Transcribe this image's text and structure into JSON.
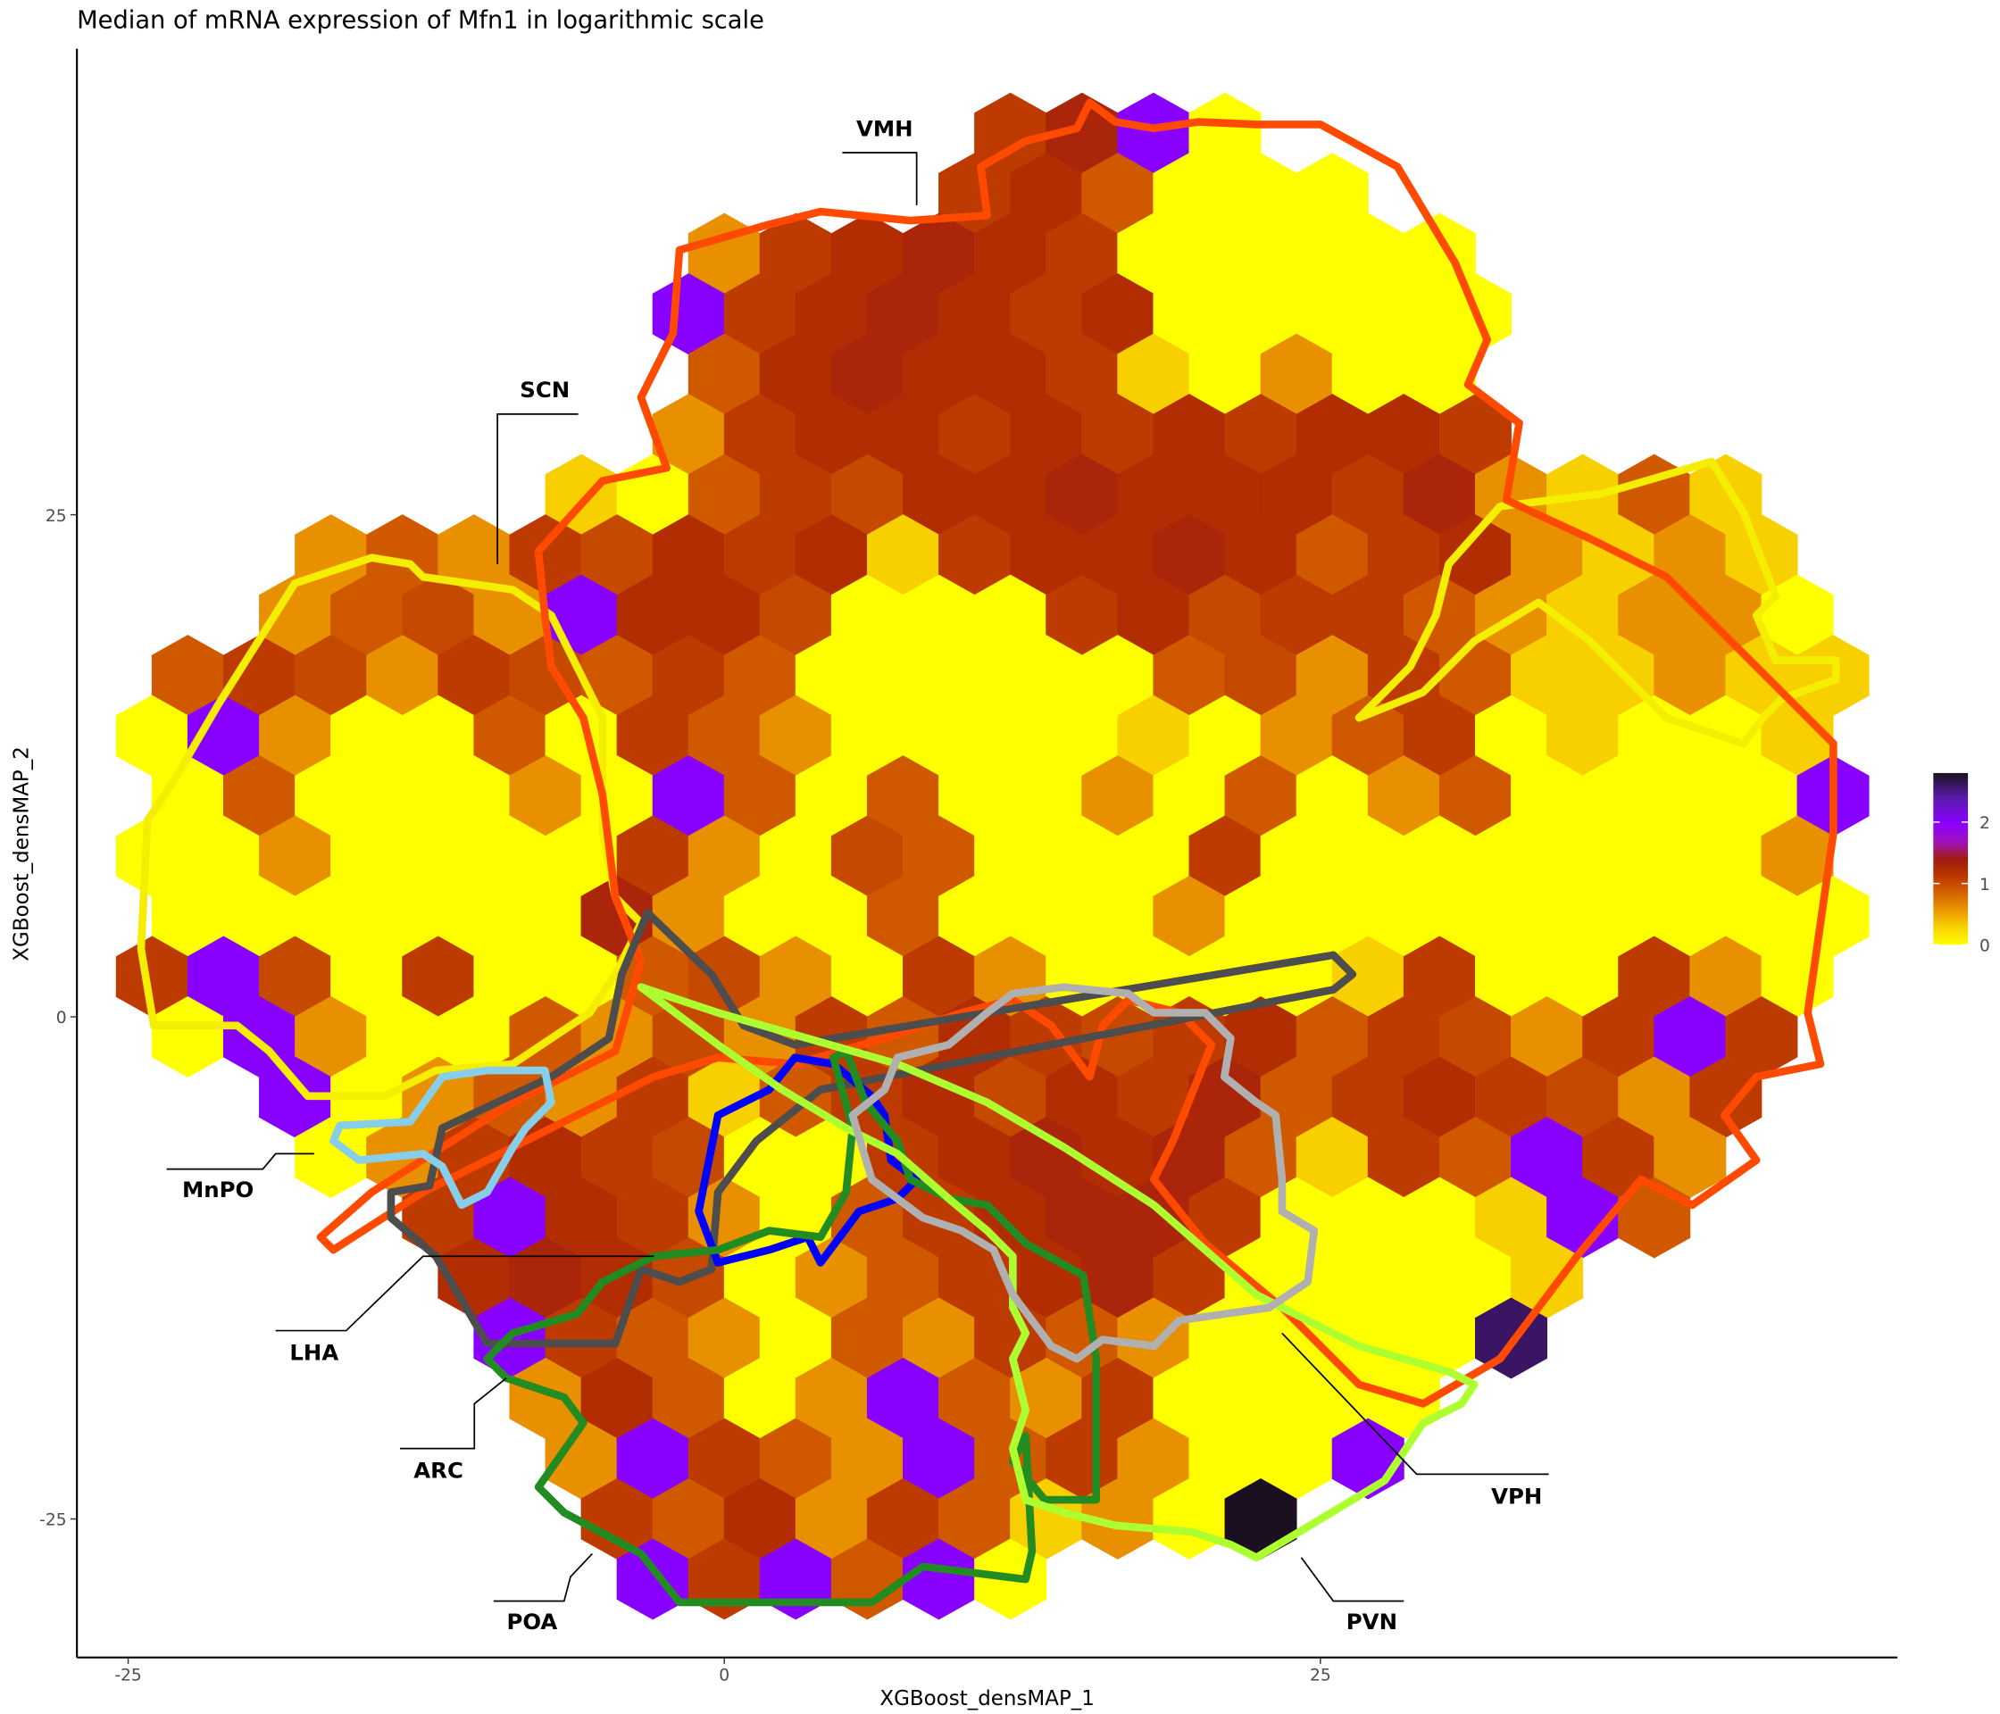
{
  "chart_data": {
    "type": "hexbin",
    "title": "Median of mRNA expression of Mfn1 in logarithmic scale",
    "x_label": "XGBoost_densMAP_1",
    "y_label": "XGBoost_densMAP_2",
    "xlim": [
      -27.15,
      49.2
    ],
    "ylim": [
      -31.9,
      48.2
    ],
    "xticks": [
      -25,
      0,
      25
    ],
    "yticks": [
      -25,
      0,
      25
    ],
    "clim": [
      0,
      2.8
    ],
    "cticks": [
      0,
      1,
      2
    ],
    "regions": [
      "VMH",
      "SCN",
      "MnPO",
      "LHA",
      "ARC",
      "POA",
      "VPH",
      "PVN"
    ],
    "hexes": [
      {
        "y": 44,
        "x": [
          12,
          15,
          18,
          21
        ],
        "values": [
          1.1,
          1.3,
          2,
          0
        ]
      },
      {
        "y": 41,
        "x": [
          10.5,
          13.5,
          16.5,
          19.5,
          22.5,
          25.5
        ],
        "values": [
          1.1,
          1.2,
          0.9,
          0,
          0,
          0
        ]
      },
      {
        "y": 38,
        "x": [
          0,
          3,
          6,
          9,
          12,
          15,
          18,
          21,
          24,
          27,
          30
        ],
        "values": [
          0.6,
          1.1,
          1.2,
          1.3,
          1.2,
          1.1,
          0,
          0,
          0,
          0,
          0
        ]
      },
      {
        "y": 35,
        "x": [
          -1.5,
          1.5,
          4.5,
          7.5,
          10.5,
          13.5,
          16.5,
          19.5,
          22.5,
          25.5,
          28.5,
          31.5
        ],
        "values": [
          2,
          1.1,
          1.2,
          1.3,
          1.2,
          1.1,
          1.2,
          0,
          0,
          0,
          0,
          0
        ]
      },
      {
        "y": 32,
        "x": [
          0,
          3,
          6,
          9,
          12,
          15,
          18,
          21,
          24,
          27,
          30
        ],
        "values": [
          0.9,
          1.2,
          1.3,
          1.2,
          1.2,
          1.1,
          0.3,
          0,
          0.6,
          0,
          0
        ]
      },
      {
        "y": 29,
        "x": [
          -1.5,
          1.5,
          4.5,
          7.5,
          10.5,
          13.5,
          16.5,
          19.5,
          22.5,
          25.5,
          28.5,
          31.5
        ],
        "values": [
          0.6,
          1.1,
          1.2,
          1.2,
          1.1,
          1.2,
          1.1,
          1.2,
          1.1,
          1.2,
          1.2,
          1.1
        ]
      },
      {
        "y": 26,
        "x": [
          -6,
          -3,
          0,
          3,
          6,
          9,
          12,
          15,
          18,
          21,
          24,
          27,
          30,
          33,
          36,
          39,
          42
        ],
        "values": [
          0.3,
          0,
          0.9,
          1.1,
          1,
          1.2,
          1.2,
          1.3,
          1.2,
          1.2,
          1.2,
          1.1,
          1.3,
          0.6,
          0.3,
          0.9,
          0.3
        ]
      },
      {
        "y": 23,
        "x": [
          -16.5,
          -13.5,
          -10.5,
          -7.5,
          -4.5,
          -1.5,
          1.5,
          4.5,
          7.5,
          10.5,
          13.5,
          16.5,
          19.5,
          22.5,
          25.5,
          28.5,
          31.5,
          34.5,
          37.5,
          40.5,
          43.5
        ],
        "values": [
          0.6,
          0.9,
          0.6,
          1.1,
          1,
          1.2,
          1.1,
          1.2,
          0.3,
          1.1,
          1.2,
          1.2,
          1.3,
          1.2,
          0.9,
          1.1,
          1.2,
          0.6,
          0.3,
          0.6,
          0.3
        ]
      },
      {
        "y": 20,
        "x": [
          -18,
          -15,
          -12,
          -9,
          -6,
          -3,
          0,
          3,
          6,
          9,
          12,
          15,
          18,
          21,
          24,
          27,
          30,
          33,
          36,
          39,
          42,
          45
        ],
        "values": [
          0.6,
          0.9,
          1,
          0.6,
          2,
          1.2,
          1.2,
          1,
          0,
          0,
          0,
          1.1,
          1.2,
          1,
          1.1,
          1.1,
          0.9,
          0.6,
          0.3,
          0.6,
          0.6,
          0
        ]
      },
      {
        "y": 17,
        "x": [
          -22.5,
          -19.5,
          -16.5,
          -13.5,
          -10.5,
          -7.5,
          -4.5,
          -1.5,
          1.5,
          4.5,
          7.5,
          10.5,
          13.5,
          16.5,
          19.5,
          22.5,
          25.5,
          28.5,
          31.5,
          34.5,
          37.5,
          40.5,
          43.5,
          46.5
        ],
        "values": [
          0.9,
          1.1,
          1,
          0.6,
          1.1,
          1,
          0.9,
          1.1,
          0.9,
          0,
          0,
          0,
          0,
          0,
          0.9,
          1,
          0.6,
          1.1,
          0.9,
          0.3,
          0.3,
          0.6,
          0.3,
          0.3
        ]
      },
      {
        "y": 14,
        "x": [
          -24,
          -21,
          -18,
          -15,
          -12,
          -9,
          -6,
          -3,
          0,
          3,
          6,
          9,
          12,
          15,
          18,
          21,
          24,
          27,
          30,
          33,
          36,
          39,
          42,
          45
        ],
        "values": [
          0,
          2,
          0.6,
          0,
          0,
          0.9,
          0,
          1.1,
          0.9,
          0.6,
          0,
          0,
          0,
          0,
          0.3,
          0,
          0.6,
          0.9,
          1.1,
          0,
          0.3,
          0,
          0,
          0.3
        ]
      },
      {
        "y": 11,
        "x": [
          -22.5,
          -19.5,
          -16.5,
          -13.5,
          -10.5,
          -7.5,
          -4.5,
          -1.5,
          1.5,
          4.5,
          7.5,
          10.5,
          13.5,
          16.5,
          19.5,
          22.5,
          25.5,
          28.5,
          31.5,
          34.5,
          37.5,
          40.5,
          43.5,
          46.5
        ],
        "values": [
          0,
          0.9,
          0,
          0,
          0,
          0.6,
          0,
          2,
          0.9,
          0,
          0.9,
          0,
          0,
          0.6,
          0,
          0.9,
          0,
          0.6,
          0.9,
          0,
          0,
          0,
          0,
          2
        ]
      },
      {
        "y": 8,
        "x": [
          -24,
          -21,
          -18,
          -15,
          -12,
          -9,
          -6,
          -3,
          0,
          3,
          6,
          9,
          12,
          15,
          18,
          21,
          24,
          27,
          30,
          33,
          36,
          39,
          42,
          45
        ],
        "values": [
          0,
          0,
          0.6,
          0,
          0,
          0,
          0,
          1.1,
          0.6,
          0,
          1,
          0.9,
          0,
          0,
          0,
          1.1,
          0,
          0,
          0,
          0,
          0,
          0,
          0,
          0.6
        ]
      },
      {
        "y": 5,
        "x": [
          -22.5,
          -19.5,
          -16.5,
          -13.5,
          -10.5,
          -7.5,
          -4.5,
          -1.5,
          1.5,
          4.5,
          7.5,
          10.5,
          13.5,
          16.5,
          19.5,
          22.5,
          25.5,
          28.5,
          31.5,
          34.5,
          37.5,
          40.5,
          43.5,
          46.5
        ],
        "values": [
          0,
          0,
          0,
          0,
          0,
          0,
          1.3,
          0.6,
          0,
          0,
          0.9,
          0,
          0,
          0,
          0.6,
          0,
          0,
          0,
          0,
          0,
          0,
          0,
          0,
          0
        ]
      },
      {
        "y": 2,
        "x": [
          -24,
          -21,
          -18,
          -15,
          -12,
          -9,
          -6,
          -3,
          0,
          3,
          6,
          9,
          12,
          15,
          18,
          21,
          24,
          27,
          30,
          33,
          36,
          39,
          42,
          45
        ],
        "values": [
          1.1,
          2,
          1,
          0,
          1.1,
          0,
          0,
          0.9,
          1,
          0.6,
          0,
          1.1,
          0.6,
          0,
          0,
          0,
          0,
          0.3,
          1.1,
          0,
          0,
          1.1,
          0.6,
          0
        ]
      },
      {
        "y": -1,
        "x": [
          -22.5,
          -19.5,
          -16.5,
          -13.5,
          -10.5,
          -7.5,
          -4.5,
          -1.5,
          1.5,
          4.5,
          7.5,
          10.5,
          13.5,
          16.5,
          19.5,
          22.5,
          25.5,
          28.5,
          31.5,
          34.5,
          37.5,
          40.5,
          43.5
        ],
        "values": [
          0,
          2,
          0.6,
          0,
          0,
          0.9,
          0.6,
          1,
          0.6,
          1.1,
          0.9,
          1.2,
          1.1,
          1,
          1.1,
          1.2,
          0.9,
          1.1,
          1,
          0.6,
          1.1,
          2,
          1.1
        ]
      },
      {
        "y": -4,
        "x": [
          -18,
          -15,
          -12,
          -9,
          -6,
          -3,
          0,
          3,
          6,
          9,
          12,
          15,
          18,
          21,
          24,
          27,
          30,
          33,
          36,
          39,
          42
        ],
        "values": [
          2,
          0,
          0.6,
          0.9,
          0.6,
          1.1,
          0.3,
          0.9,
          1.1,
          1.2,
          1,
          1.2,
          1.1,
          1.3,
          0.9,
          1.1,
          1.2,
          1.1,
          1,
          0.6,
          1.1
        ]
      },
      {
        "y": -7,
        "x": [
          -16.5,
          -13.5,
          -10.5,
          -7.5,
          -4.5,
          -1.5,
          1.5,
          4.5,
          7.5,
          10.5,
          13.5,
          16.5,
          19.5,
          22.5,
          25.5,
          28.5,
          31.5,
          34.5,
          37.5,
          40.5
        ],
        "values": [
          0,
          0.6,
          1.1,
          1.2,
          1.1,
          1,
          0,
          0,
          1.1,
          1.2,
          1.3,
          1.2,
          1.3,
          0.9,
          0.3,
          1.1,
          0.9,
          2,
          1.1,
          0.6
        ]
      },
      {
        "y": -10,
        "x": [
          -12,
          -9,
          -6,
          -3,
          0,
          3,
          6,
          9,
          12,
          15,
          18,
          21,
          24,
          27,
          30,
          33,
          36,
          39
        ],
        "values": [
          1.1,
          2,
          1.2,
          1.1,
          0.6,
          0,
          0.9,
          1.1,
          1.2,
          1.3,
          1.3,
          1.1,
          0,
          0,
          0,
          0.3,
          2,
          0.9
        ]
      },
      {
        "y": -13,
        "x": [
          -10.5,
          -7.5,
          -4.5,
          -1.5,
          1.5,
          4.5,
          7.5,
          10.5,
          13.5,
          16.5,
          19.5,
          22.5,
          25.5,
          28.5,
          31.5,
          34.5
        ],
        "values": [
          1.2,
          1.3,
          1.2,
          1,
          0,
          0.6,
          0.9,
          1.1,
          1.2,
          1.3,
          1.1,
          0,
          0,
          0,
          0,
          0.3
        ]
      },
      {
        "y": -16,
        "x": [
          -9,
          -6,
          -3,
          0,
          3,
          6,
          9,
          12,
          15,
          18,
          21,
          24,
          27,
          30,
          33
        ],
        "values": [
          2,
          1.1,
          0.9,
          0.6,
          0,
          0.9,
          0.6,
          1.1,
          0.9,
          0.6,
          0,
          0,
          0,
          0,
          2.6
        ]
      },
      {
        "y": -19,
        "x": [
          -7.5,
          -4.5,
          -1.5,
          1.5,
          4.5,
          7.5,
          10.5,
          13.5,
          16.5,
          19.5,
          22.5,
          25.5,
          28.5
        ],
        "values": [
          0.6,
          1.2,
          0.9,
          0,
          0.6,
          2,
          0.9,
          0.6,
          1.1,
          0,
          0,
          0,
          0
        ]
      },
      {
        "y": -22,
        "x": [
          -6,
          -3,
          0,
          3,
          6,
          9,
          12,
          15,
          18,
          21,
          24,
          27
        ],
        "values": [
          0.6,
          2,
          1.1,
          0.9,
          0.6,
          2,
          0.9,
          1.1,
          0.6,
          0,
          0,
          2
        ]
      },
      {
        "y": -25,
        "x": [
          -4.5,
          -1.5,
          1.5,
          4.5,
          7.5,
          10.5,
          13.5,
          16.5,
          19.5,
          22.5
        ],
        "values": [
          1.1,
          0.9,
          1.2,
          0.6,
          1.1,
          0.9,
          0.3,
          0.6,
          0,
          2.8
        ]
      },
      {
        "y": -28,
        "x": [
          -3,
          0,
          3,
          6,
          9,
          12
        ],
        "values": [
          2,
          1.1,
          2,
          0.9,
          2,
          0
        ]
      }
    ]
  }
}
